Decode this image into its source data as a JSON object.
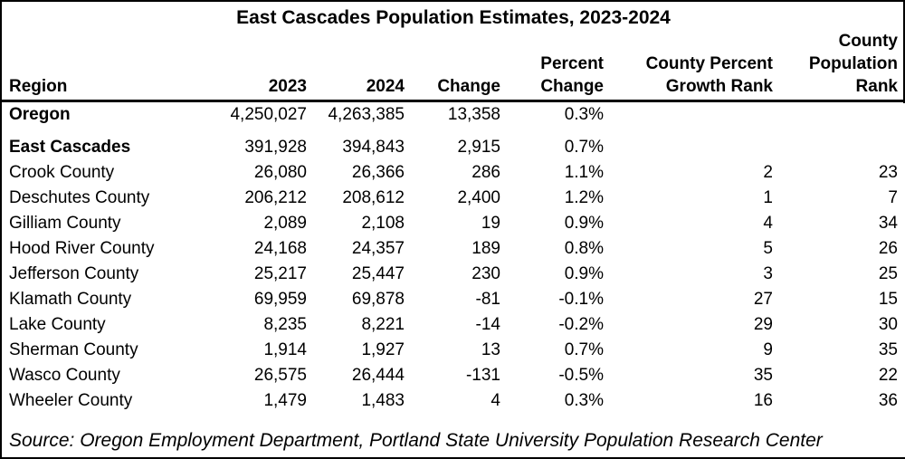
{
  "title": "East Cascades Population Estimates, 2023-2024",
  "source": "Source: Oregon Employment Department, Portland State University Population Research Center",
  "table": {
    "columns": [
      {
        "label": "Region"
      },
      {
        "label": "2023"
      },
      {
        "label": "2024"
      },
      {
        "label": "Change"
      },
      {
        "label": "Percent\nChange"
      },
      {
        "label": "County Percent\nGrowth Rank"
      },
      {
        "label": "County\nPopulation\nRank"
      }
    ],
    "rows": [
      {
        "region": "Oregon",
        "bold": true,
        "y2023": "4,250,027",
        "y2024": "4,263,385",
        "change": "13,358",
        "pct_change": "0.3%",
        "growth_rank": "",
        "pop_rank": ""
      },
      {
        "region": "East Cascades",
        "bold": true,
        "spacer_before": true,
        "y2023": "391,928",
        "y2024": "394,843",
        "change": "2,915",
        "pct_change": "0.7%",
        "growth_rank": "",
        "pop_rank": ""
      },
      {
        "region": "Crook County",
        "bold": false,
        "y2023": "26,080",
        "y2024": "26,366",
        "change": "286",
        "pct_change": "1.1%",
        "growth_rank": "2",
        "pop_rank": "23"
      },
      {
        "region": "Deschutes County",
        "bold": false,
        "y2023": "206,212",
        "y2024": "208,612",
        "change": "2,400",
        "pct_change": "1.2%",
        "growth_rank": "1",
        "pop_rank": "7"
      },
      {
        "region": "Gilliam County",
        "bold": false,
        "y2023": "2,089",
        "y2024": "2,108",
        "change": "19",
        "pct_change": "0.9%",
        "growth_rank": "4",
        "pop_rank": "34"
      },
      {
        "region": "Hood River County",
        "bold": false,
        "y2023": "24,168",
        "y2024": "24,357",
        "change": "189",
        "pct_change": "0.8%",
        "growth_rank": "5",
        "pop_rank": "26"
      },
      {
        "region": "Jefferson County",
        "bold": false,
        "y2023": "25,217",
        "y2024": "25,447",
        "change": "230",
        "pct_change": "0.9%",
        "growth_rank": "3",
        "pop_rank": "25"
      },
      {
        "region": "Klamath County",
        "bold": false,
        "y2023": "69,959",
        "y2024": "69,878",
        "change": "-81",
        "pct_change": "-0.1%",
        "growth_rank": "27",
        "pop_rank": "15"
      },
      {
        "region": "Lake County",
        "bold": false,
        "y2023": "8,235",
        "y2024": "8,221",
        "change": "-14",
        "pct_change": "-0.2%",
        "growth_rank": "29",
        "pop_rank": "30"
      },
      {
        "region": "Sherman County",
        "bold": false,
        "y2023": "1,914",
        "y2024": "1,927",
        "change": "13",
        "pct_change": "0.7%",
        "growth_rank": "9",
        "pop_rank": "35"
      },
      {
        "region": "Wasco County",
        "bold": false,
        "y2023": "26,575",
        "y2024": "26,444",
        "change": "-131",
        "pct_change": "-0.5%",
        "growth_rank": "35",
        "pop_rank": "22"
      },
      {
        "region": "Wheeler County",
        "bold": false,
        "y2023": "1,479",
        "y2024": "1,483",
        "change": "4",
        "pct_change": "0.3%",
        "growth_rank": "16",
        "pop_rank": "36"
      }
    ]
  },
  "colors": {
    "text": "#000000",
    "background": "#ffffff",
    "border": "#000000"
  },
  "chart_data": {
    "type": "table",
    "title": "East Cascades Population Estimates, 2023-2024",
    "columns": [
      "Region",
      "2023",
      "2024",
      "Change",
      "Percent Change",
      "County Percent Growth Rank",
      "County Population Rank"
    ],
    "rows": [
      [
        "Oregon",
        4250027,
        4263385,
        13358,
        "0.3%",
        null,
        null
      ],
      [
        "East Cascades",
        391928,
        394843,
        2915,
        "0.7%",
        null,
        null
      ],
      [
        "Crook County",
        26080,
        26366,
        286,
        "1.1%",
        2,
        23
      ],
      [
        "Deschutes County",
        206212,
        208612,
        2400,
        "1.2%",
        1,
        7
      ],
      [
        "Gilliam County",
        2089,
        2108,
        19,
        "0.9%",
        4,
        34
      ],
      [
        "Hood River County",
        24168,
        24357,
        189,
        "0.8%",
        5,
        26
      ],
      [
        "Jefferson County",
        25217,
        25447,
        230,
        "0.9%",
        3,
        25
      ],
      [
        "Klamath County",
        69959,
        69878,
        -81,
        "-0.1%",
        27,
        15
      ],
      [
        "Lake County",
        8235,
        8221,
        -14,
        "-0.2%",
        29,
        30
      ],
      [
        "Sherman County",
        1914,
        1927,
        13,
        "0.7%",
        9,
        35
      ],
      [
        "Wasco County",
        26575,
        26444,
        -131,
        "-0.5%",
        35,
        22
      ],
      [
        "Wheeler County",
        1479,
        1483,
        4,
        "0.3%",
        16,
        36
      ]
    ],
    "source": "Source: Oregon Employment Department, Portland State University Population Research Center"
  }
}
